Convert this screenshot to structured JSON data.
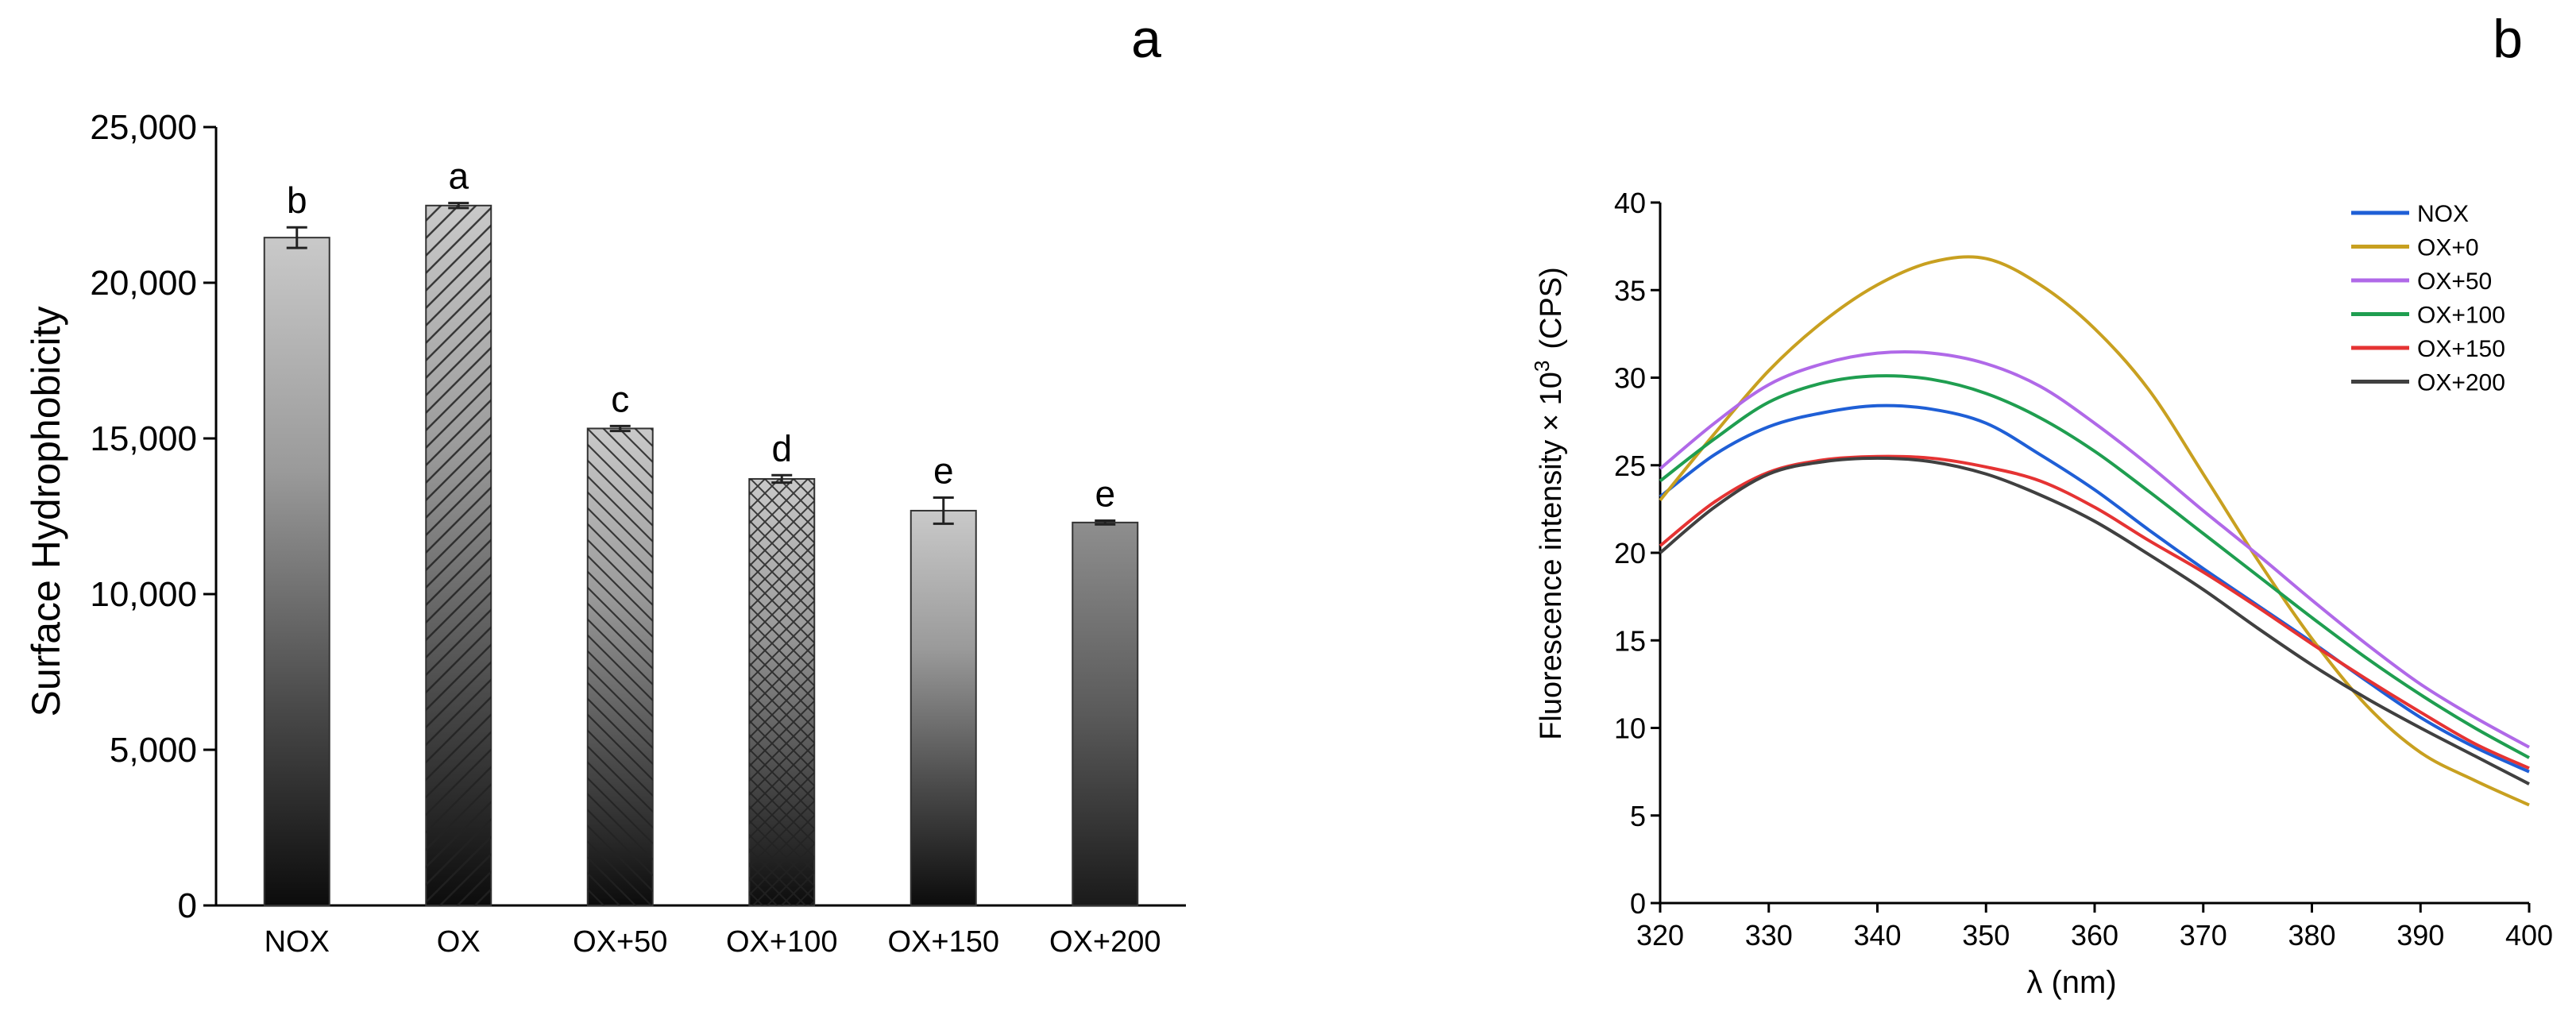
{
  "chart_data": [
    {
      "panel_label": "a",
      "type": "bar",
      "ylabel": "Surface Hydrophobicity",
      "ylim": [
        0,
        25000
      ],
      "yticks": [
        "0",
        "5,000",
        "10,000",
        "15,000",
        "20,000",
        "25,000"
      ],
      "categories": [
        "NOX",
        "OX",
        "OX+50",
        "OX+100",
        "OX+150",
        "OX+200"
      ],
      "values": [
        21450,
        22480,
        15320,
        13700,
        12680,
        12300
      ],
      "errors": [
        330,
        80,
        80,
        120,
        420,
        60
      ],
      "significance_letters": [
        "b",
        "a",
        "c",
        "d",
        "e",
        "e"
      ],
      "fill_patterns": [
        "gradient",
        "diagonal",
        "diagonal-reverse",
        "crosshatch",
        "gradient",
        "gradient-dark"
      ]
    },
    {
      "panel_label": "b",
      "type": "line",
      "xlabel": "λ (nm)",
      "ylabel": "Fluorescence intensity × 10",
      "ylabel_superscript": "3",
      "ylabel_unit": "(CPS)",
      "xlim": [
        320,
        400
      ],
      "ylim": [
        0,
        40
      ],
      "xticks": [
        "320",
        "330",
        "340",
        "350",
        "360",
        "370",
        "380",
        "390",
        "400"
      ],
      "yticks": [
        "0",
        "5",
        "10",
        "15",
        "20",
        "25",
        "30",
        "35",
        "40"
      ],
      "legend_position": "top-right",
      "x": [
        320,
        325,
        330,
        335,
        340,
        345,
        350,
        355,
        360,
        365,
        370,
        375,
        380,
        385,
        390,
        395,
        400
      ],
      "series": [
        {
          "name": "NOX",
          "color": "#1f5fd6",
          "values": [
            23.2,
            25.6,
            27.2,
            28.0,
            28.4,
            28.2,
            27.4,
            25.6,
            23.6,
            21.3,
            19.1,
            17.0,
            14.9,
            12.7,
            10.6,
            8.9,
            7.5
          ]
        },
        {
          "name": "OX+0",
          "color": "#c8a020",
          "values": [
            23.0,
            26.8,
            30.4,
            33.2,
            35.3,
            36.6,
            36.8,
            35.3,
            32.8,
            29.3,
            24.5,
            19.6,
            15.1,
            11.3,
            8.6,
            7.0,
            5.6
          ]
        },
        {
          "name": "OX+50",
          "color": "#b069e8",
          "values": [
            24.8,
            27.4,
            29.6,
            30.8,
            31.4,
            31.4,
            30.8,
            29.5,
            27.4,
            25.0,
            22.4,
            19.9,
            17.3,
            14.8,
            12.5,
            10.6,
            8.9
          ]
        },
        {
          "name": "OX+100",
          "color": "#1f9e50",
          "values": [
            24.1,
            26.5,
            28.6,
            29.7,
            30.1,
            29.9,
            29.1,
            27.7,
            25.8,
            23.5,
            21.1,
            18.7,
            16.3,
            14.0,
            11.9,
            10.0,
            8.3
          ]
        },
        {
          "name": "OX+150",
          "color": "#e53333",
          "values": [
            20.4,
            22.9,
            24.6,
            25.3,
            25.5,
            25.4,
            24.9,
            24.1,
            22.6,
            20.7,
            18.9,
            16.9,
            14.8,
            12.8,
            10.9,
            9.1,
            7.7
          ]
        },
        {
          "name": "OX+200",
          "color": "#404040",
          "values": [
            20.0,
            22.6,
            24.5,
            25.2,
            25.4,
            25.2,
            24.5,
            23.3,
            21.8,
            19.9,
            17.9,
            15.7,
            13.6,
            11.7,
            10.0,
            8.4,
            6.8
          ]
        }
      ]
    }
  ]
}
